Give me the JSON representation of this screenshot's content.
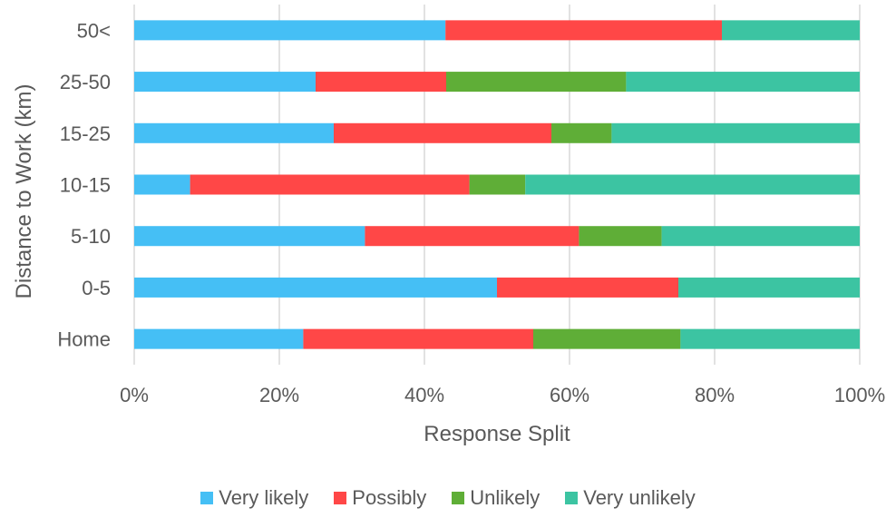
{
  "chart_data": {
    "type": "bar",
    "orientation": "horizontal",
    "stacked": "percent",
    "title": "",
    "xlabel": "Response Split",
    "ylabel": "Distance to Work (km)",
    "xlim": [
      0,
      100
    ],
    "xticks": [
      "0%",
      "20%",
      "40%",
      "60%",
      "80%",
      "100%"
    ],
    "grid": "vertical",
    "legend_position": "bottom",
    "categories": [
      "Home",
      "0-5",
      "5-10",
      "10-15",
      "15-25",
      "25-50",
      "50<"
    ],
    "series": [
      {
        "name": "Very likely",
        "color": "#45BFF5",
        "values": [
          23.3,
          50.0,
          31.8,
          7.7,
          27.5,
          25.0,
          42.9
        ]
      },
      {
        "name": "Possibly",
        "color": "#FF4747",
        "values": [
          31.7,
          25.0,
          29.5,
          38.5,
          30.0,
          18.0,
          38.1
        ]
      },
      {
        "name": "Unlikely",
        "color": "#5FAE37",
        "values": [
          20.3,
          0.0,
          11.4,
          7.7,
          8.3,
          24.8,
          0.0
        ]
      },
      {
        "name": "Very unlikely",
        "color": "#3CC4A2",
        "values": [
          24.7,
          25.0,
          27.3,
          46.1,
          34.2,
          32.2,
          19.0
        ]
      }
    ]
  }
}
